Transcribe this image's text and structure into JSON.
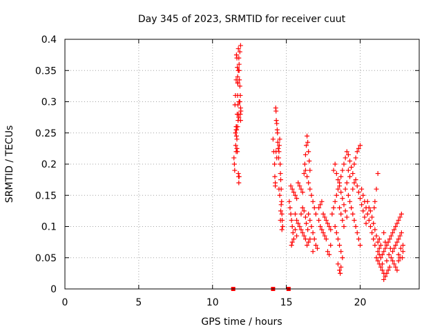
{
  "chart_data": {
    "type": "scatter",
    "title": "Day 345 of 2023, SRMTID for receiver cuut",
    "xlabel": "GPS time / hours",
    "ylabel": "SRMTID / TECUs",
    "xlim": [
      0,
      24
    ],
    "ylim": [
      0,
      0.4
    ],
    "xticks": [
      "0",
      "5",
      "10",
      "15",
      "20"
    ],
    "yticks": [
      "0",
      "0.05",
      "0.1",
      "0.15",
      "0.2",
      "0.25",
      "0.3",
      "0.35",
      "0.4"
    ],
    "grid": true,
    "marker": "plus",
    "color": "#ff0000",
    "series": [
      {
        "points": [
          [
            11.45,
            0.21
          ],
          [
            11.48,
            0.2
          ],
          [
            11.5,
            0.19
          ],
          [
            11.52,
            0.295
          ],
          [
            11.55,
            0.25
          ],
          [
            11.57,
            0.23
          ],
          [
            11.6,
            0.22
          ],
          [
            11.62,
            0.26
          ],
          [
            11.65,
            0.24
          ],
          [
            11.67,
            0.28
          ],
          [
            11.7,
            0.31
          ],
          [
            11.72,
            0.295
          ],
          [
            11.75,
            0.185
          ],
          [
            11.77,
            0.18
          ],
          [
            11.78,
            0.17
          ],
          [
            11.8,
            0.18
          ],
          [
            11.55,
            0.31
          ],
          [
            11.6,
            0.335
          ],
          [
            11.62,
            0.375
          ],
          [
            11.65,
            0.37
          ],
          [
            11.68,
            0.355
          ],
          [
            11.7,
            0.34
          ],
          [
            11.72,
            0.33
          ],
          [
            11.75,
            0.385
          ],
          [
            11.78,
            0.37
          ],
          [
            11.8,
            0.35
          ],
          [
            11.82,
            0.335
          ],
          [
            11.85,
            0.325
          ],
          [
            11.88,
            0.31
          ],
          [
            11.9,
            0.29
          ],
          [
            11.92,
            0.285
          ],
          [
            11.85,
            0.3
          ],
          [
            11.88,
            0.28
          ],
          [
            11.9,
            0.27
          ],
          [
            11.6,
            0.255
          ],
          [
            11.62,
            0.245
          ],
          [
            11.65,
            0.225
          ],
          [
            11.68,
            0.22
          ],
          [
            11.7,
            0.26
          ],
          [
            11.73,
            0.27
          ],
          [
            11.75,
            0.28
          ],
          [
            11.78,
            0.275
          ],
          [
            11.8,
            0.3
          ],
          [
            11.6,
            0.26
          ],
          [
            11.63,
            0.255
          ],
          [
            11.7,
            0.33
          ],
          [
            11.74,
            0.35
          ],
          [
            11.8,
            0.36
          ],
          [
            11.85,
            0.38
          ],
          [
            11.9,
            0.39
          ],
          [
            14.1,
            0.24
          ],
          [
            14.15,
            0.22
          ],
          [
            14.2,
            0.2
          ],
          [
            14.22,
            0.18
          ],
          [
            14.25,
            0.17
          ],
          [
            14.28,
            0.29
          ],
          [
            14.3,
            0.285
          ],
          [
            14.32,
            0.27
          ],
          [
            14.35,
            0.265
          ],
          [
            14.38,
            0.255
          ],
          [
            14.4,
            0.25
          ],
          [
            14.42,
            0.235
          ],
          [
            14.45,
            0.225
          ],
          [
            14.48,
            0.21
          ],
          [
            14.5,
            0.22
          ],
          [
            14.52,
            0.23
          ],
          [
            14.55,
            0.24
          ],
          [
            14.58,
            0.2
          ],
          [
            14.6,
            0.185
          ],
          [
            14.62,
            0.175
          ],
          [
            14.65,
            0.16
          ],
          [
            14.68,
            0.14
          ],
          [
            14.7,
            0.12
          ],
          [
            14.72,
            0.11
          ],
          [
            14.75,
            0.1
          ],
          [
            14.6,
            0.11
          ],
          [
            14.62,
            0.125
          ],
          [
            14.65,
            0.135
          ],
          [
            14.3,
            0.22
          ],
          [
            14.35,
            0.21
          ],
          [
            14.7,
            0.095
          ],
          [
            14.25,
            0.165
          ],
          [
            14.5,
            0.16
          ],
          [
            14.55,
            0.15
          ],
          [
            15.2,
            0.14
          ],
          [
            15.25,
            0.13
          ],
          [
            15.3,
            0.12
          ],
          [
            15.35,
            0.11
          ],
          [
            15.4,
            0.1
          ],
          [
            15.45,
            0.09
          ],
          [
            15.5,
            0.08
          ],
          [
            15.35,
            0.07
          ],
          [
            15.4,
            0.075
          ],
          [
            15.3,
            0.165
          ],
          [
            15.4,
            0.16
          ],
          [
            15.5,
            0.155
          ],
          [
            15.6,
            0.15
          ],
          [
            15.7,
            0.145
          ],
          [
            15.6,
            0.12
          ],
          [
            15.7,
            0.11
          ],
          [
            15.8,
            0.105
          ],
          [
            15.9,
            0.1
          ],
          [
            16.0,
            0.095
          ],
          [
            16.1,
            0.09
          ],
          [
            16.2,
            0.085
          ],
          [
            16.3,
            0.08
          ],
          [
            15.8,
            0.17
          ],
          [
            15.9,
            0.165
          ],
          [
            16.0,
            0.16
          ],
          [
            16.1,
            0.155
          ],
          [
            16.2,
            0.185
          ],
          [
            16.25,
            0.2
          ],
          [
            16.3,
            0.215
          ],
          [
            16.35,
            0.23
          ],
          [
            16.4,
            0.245
          ],
          [
            16.45,
            0.235
          ],
          [
            16.5,
            0.22
          ],
          [
            16.55,
            0.205
          ],
          [
            16.6,
            0.19
          ],
          [
            16.3,
            0.19
          ],
          [
            16.4,
            0.18
          ],
          [
            16.5,
            0.17
          ],
          [
            16.6,
            0.16
          ],
          [
            16.7,
            0.15
          ],
          [
            16.8,
            0.14
          ],
          [
            16.9,
            0.13
          ],
          [
            17.0,
            0.12
          ],
          [
            16.5,
            0.12
          ],
          [
            16.6,
            0.11
          ],
          [
            16.7,
            0.1
          ],
          [
            16.8,
            0.09
          ],
          [
            16.9,
            0.08
          ],
          [
            17.0,
            0.07
          ],
          [
            17.1,
            0.065
          ],
          [
            16.4,
            0.07
          ],
          [
            16.5,
            0.075
          ],
          [
            16.6,
            0.08
          ],
          [
            16.8,
            0.06
          ],
          [
            17.2,
            0.11
          ],
          [
            17.3,
            0.1
          ],
          [
            17.4,
            0.095
          ],
          [
            17.5,
            0.09
          ],
          [
            17.6,
            0.085
          ],
          [
            17.7,
            0.08
          ],
          [
            17.2,
            0.13
          ],
          [
            17.3,
            0.135
          ],
          [
            17.4,
            0.14
          ],
          [
            17.5,
            0.12
          ],
          [
            17.6,
            0.115
          ],
          [
            17.7,
            0.11
          ],
          [
            17.8,
            0.105
          ],
          [
            17.9,
            0.1
          ],
          [
            18.0,
            0.095
          ],
          [
            17.8,
            0.06
          ],
          [
            17.9,
            0.055
          ],
          [
            18.0,
            0.07
          ],
          [
            16.0,
            0.12
          ],
          [
            16.1,
            0.13
          ],
          [
            16.2,
            0.125
          ],
          [
            16.3,
            0.115
          ],
          [
            16.35,
            0.105
          ],
          [
            16.45,
            0.095
          ],
          [
            15.6,
            0.095
          ],
          [
            15.7,
            0.085
          ],
          [
            18.1,
            0.12
          ],
          [
            18.2,
            0.13
          ],
          [
            18.3,
            0.14
          ],
          [
            18.4,
            0.15
          ],
          [
            18.5,
            0.16
          ],
          [
            18.6,
            0.17
          ],
          [
            18.7,
            0.18
          ],
          [
            18.8,
            0.19
          ],
          [
            18.9,
            0.2
          ],
          [
            19.0,
            0.21
          ],
          [
            19.1,
            0.22
          ],
          [
            19.2,
            0.215
          ],
          [
            19.3,
            0.205
          ],
          [
            19.4,
            0.195
          ],
          [
            19.5,
            0.185
          ],
          [
            19.6,
            0.2
          ],
          [
            19.7,
            0.21
          ],
          [
            19.8,
            0.22
          ],
          [
            19.9,
            0.225
          ],
          [
            20.0,
            0.23
          ],
          [
            18.2,
            0.19
          ],
          [
            18.3,
            0.2
          ],
          [
            18.4,
            0.185
          ],
          [
            18.5,
            0.175
          ],
          [
            18.6,
            0.165
          ],
          [
            18.7,
            0.155
          ],
          [
            18.8,
            0.145
          ],
          [
            18.9,
            0.135
          ],
          [
            19.0,
            0.125
          ],
          [
            19.1,
            0.115
          ],
          [
            18.3,
            0.1
          ],
          [
            18.4,
            0.09
          ],
          [
            18.5,
            0.08
          ],
          [
            18.6,
            0.07
          ],
          [
            18.7,
            0.06
          ],
          [
            18.8,
            0.05
          ],
          [
            18.6,
            0.03
          ],
          [
            18.65,
            0.025
          ],
          [
            18.7,
            0.035
          ],
          [
            18.5,
            0.04
          ],
          [
            19.2,
            0.15
          ],
          [
            19.3,
            0.14
          ],
          [
            19.4,
            0.13
          ],
          [
            19.5,
            0.12
          ],
          [
            19.6,
            0.11
          ],
          [
            19.7,
            0.1
          ],
          [
            19.8,
            0.09
          ],
          [
            19.9,
            0.08
          ],
          [
            20.0,
            0.07
          ],
          [
            19.5,
            0.16
          ],
          [
            19.6,
            0.17
          ],
          [
            19.7,
            0.175
          ],
          [
            19.8,
            0.165
          ],
          [
            19.9,
            0.155
          ],
          [
            20.0,
            0.145
          ],
          [
            20.1,
            0.135
          ],
          [
            20.2,
            0.125
          ],
          [
            20.3,
            0.115
          ],
          [
            20.4,
            0.105
          ],
          [
            19.3,
            0.18
          ],
          [
            19.2,
            0.19
          ],
          [
            19.1,
            0.17
          ],
          [
            19.0,
            0.16
          ],
          [
            18.9,
            0.1
          ],
          [
            18.8,
            0.11
          ],
          [
            18.7,
            0.12
          ],
          [
            18.6,
            0.13
          ],
          [
            20.1,
            0.16
          ],
          [
            20.2,
            0.15
          ],
          [
            20.3,
            0.14
          ],
          [
            20.4,
            0.13
          ],
          [
            20.5,
            0.12
          ],
          [
            20.6,
            0.11
          ],
          [
            20.7,
            0.1
          ],
          [
            20.8,
            0.09
          ],
          [
            20.9,
            0.08
          ],
          [
            21.0,
            0.07
          ],
          [
            20.5,
            0.14
          ],
          [
            20.6,
            0.13
          ],
          [
            20.7,
            0.125
          ],
          [
            20.8,
            0.115
          ],
          [
            20.9,
            0.105
          ],
          [
            21.0,
            0.095
          ],
          [
            21.1,
            0.085
          ],
          [
            21.2,
            0.075
          ],
          [
            21.3,
            0.065
          ],
          [
            21.2,
            0.185
          ],
          [
            21.1,
            0.16
          ],
          [
            21.0,
            0.14
          ],
          [
            20.95,
            0.13
          ],
          [
            21.1,
            0.05
          ],
          [
            21.2,
            0.045
          ],
          [
            21.3,
            0.04
          ],
          [
            21.4,
            0.035
          ],
          [
            21.5,
            0.03
          ],
          [
            21.6,
            0.025
          ],
          [
            21.7,
            0.02
          ],
          [
            21.8,
            0.025
          ],
          [
            21.9,
            0.03
          ],
          [
            22.0,
            0.035
          ],
          [
            21.2,
            0.06
          ],
          [
            21.3,
            0.055
          ],
          [
            21.4,
            0.05
          ],
          [
            21.5,
            0.055
          ],
          [
            21.6,
            0.06
          ],
          [
            21.7,
            0.065
          ],
          [
            21.8,
            0.07
          ],
          [
            21.9,
            0.075
          ],
          [
            22.0,
            0.08
          ],
          [
            22.1,
            0.085
          ],
          [
            22.2,
            0.09
          ],
          [
            22.3,
            0.095
          ],
          [
            22.4,
            0.1
          ],
          [
            22.5,
            0.105
          ],
          [
            22.6,
            0.11
          ],
          [
            22.7,
            0.115
          ],
          [
            22.8,
            0.12
          ],
          [
            22.2,
            0.06
          ],
          [
            22.3,
            0.065
          ],
          [
            22.4,
            0.07
          ],
          [
            22.5,
            0.075
          ],
          [
            22.6,
            0.08
          ],
          [
            22.7,
            0.085
          ],
          [
            22.8,
            0.09
          ],
          [
            22.9,
            0.07
          ],
          [
            22.9,
            0.06
          ],
          [
            22.85,
            0.05
          ],
          [
            22.1,
            0.05
          ],
          [
            22.2,
            0.045
          ],
          [
            22.3,
            0.04
          ],
          [
            22.4,
            0.035
          ],
          [
            22.5,
            0.03
          ],
          [
            22.6,
            0.045
          ],
          [
            22.7,
            0.05
          ],
          [
            21.6,
            0.015
          ],
          [
            21.5,
            0.04
          ],
          [
            21.8,
            0.045
          ],
          [
            21.95,
            0.055
          ],
          [
            22.05,
            0.065
          ],
          [
            21.4,
            0.07
          ],
          [
            21.3,
            0.08
          ],
          [
            21.6,
            0.09
          ],
          [
            21.7,
            0.075
          ],
          [
            22.6,
            0.055
          ],
          [
            22.75,
            0.065
          ]
        ]
      }
    ],
    "bottom_markers": [
      11.4,
      14.1,
      15.15
    ]
  }
}
